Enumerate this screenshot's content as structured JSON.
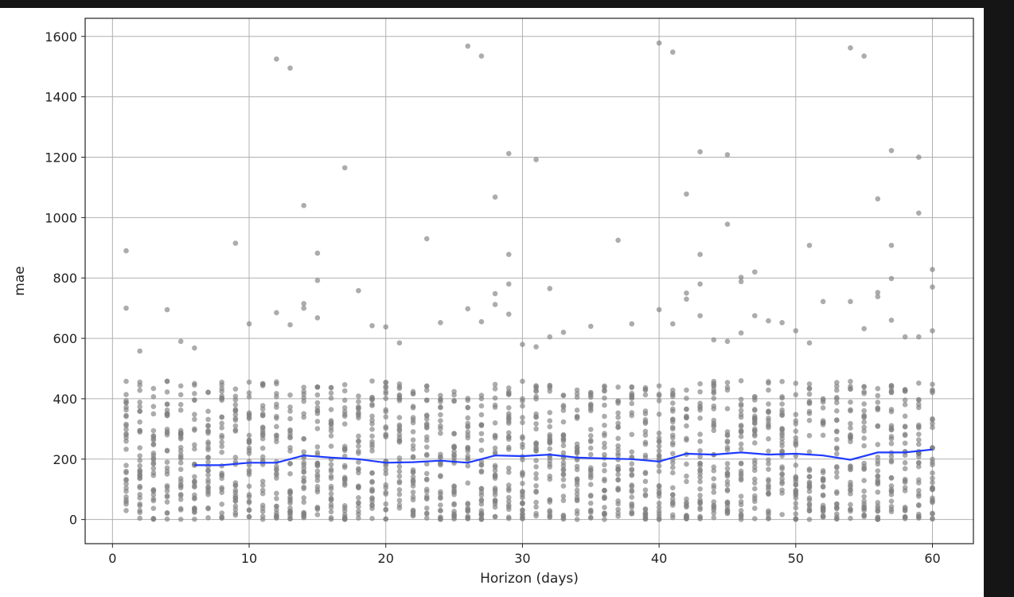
{
  "chart_data": {
    "type": "scatter",
    "xlabel": "Horizon (days)",
    "ylabel": "mae",
    "xlim": [
      -2,
      63
    ],
    "ylim": [
      -80,
      1660
    ],
    "grid": true,
    "xticks": [
      0,
      10,
      20,
      30,
      40,
      50,
      60
    ],
    "yticks": [
      0,
      200,
      400,
      600,
      800,
      1000,
      1200,
      1400,
      1600
    ],
    "xtick_labels": [
      "0",
      "10",
      "20",
      "30",
      "40",
      "50",
      "60"
    ],
    "ytick_labels": [
      "0",
      "200",
      "400",
      "600",
      "800",
      "1000",
      "1200",
      "1400",
      "1600"
    ],
    "colors": {
      "points": "#808080",
      "rolling_line": "#1f3bff",
      "grid": "#b0b0b0"
    },
    "outliers": [
      [
        1,
        890
      ],
      [
        1,
        700
      ],
      [
        2,
        558
      ],
      [
        2,
        455
      ],
      [
        4,
        695
      ],
      [
        5,
        590
      ],
      [
        6,
        568
      ],
      [
        9,
        915
      ],
      [
        10,
        648
      ],
      [
        12,
        1525
      ],
      [
        12,
        685
      ],
      [
        13,
        1495
      ],
      [
        13,
        645
      ],
      [
        14,
        1040
      ],
      [
        14,
        715
      ],
      [
        14,
        700
      ],
      [
        15,
        882
      ],
      [
        15,
        792
      ],
      [
        15,
        668
      ],
      [
        17,
        1165
      ],
      [
        18,
        758
      ],
      [
        19,
        642
      ],
      [
        20,
        638
      ],
      [
        21,
        585
      ],
      [
        23,
        930
      ],
      [
        24,
        652
      ],
      [
        26,
        1568
      ],
      [
        26,
        698
      ],
      [
        27,
        1535
      ],
      [
        27,
        655
      ],
      [
        28,
        1068
      ],
      [
        28,
        748
      ],
      [
        28,
        712
      ],
      [
        29,
        1212
      ],
      [
        29,
        878
      ],
      [
        29,
        780
      ],
      [
        29,
        680
      ],
      [
        30,
        580
      ],
      [
        31,
        1192
      ],
      [
        31,
        572
      ],
      [
        32,
        765
      ],
      [
        32,
        605
      ],
      [
        33,
        620
      ],
      [
        35,
        640
      ],
      [
        37,
        925
      ],
      [
        38,
        648
      ],
      [
        40,
        1578
      ],
      [
        40,
        695
      ],
      [
        41,
        1548
      ],
      [
        41,
        648
      ],
      [
        42,
        1078
      ],
      [
        42,
        750
      ],
      [
        42,
        730
      ],
      [
        43,
        1218
      ],
      [
        43,
        878
      ],
      [
        43,
        780
      ],
      [
        43,
        675
      ],
      [
        44,
        595
      ],
      [
        45,
        1208
      ],
      [
        45,
        978
      ],
      [
        45,
        590
      ],
      [
        46,
        802
      ],
      [
        46,
        788
      ],
      [
        46,
        618
      ],
      [
        47,
        820
      ],
      [
        47,
        675
      ],
      [
        48,
        658
      ],
      [
        49,
        652
      ],
      [
        50,
        625
      ],
      [
        51,
        908
      ],
      [
        51,
        585
      ],
      [
        52,
        722
      ],
      [
        54,
        1562
      ],
      [
        54,
        722
      ],
      [
        55,
        1535
      ],
      [
        55,
        632
      ],
      [
        56,
        1062
      ],
      [
        56,
        752
      ],
      [
        56,
        738
      ],
      [
        57,
        1222
      ],
      [
        57,
        908
      ],
      [
        57,
        798
      ],
      [
        57,
        660
      ],
      [
        58,
        605
      ],
      [
        59,
        1200
      ],
      [
        59,
        1015
      ],
      [
        59,
        605
      ],
      [
        60,
        828
      ],
      [
        60,
        770
      ],
      [
        60,
        625
      ]
    ],
    "dense_cluster": {
      "x_from": 1,
      "x_to": 60,
      "y_from": 0,
      "y_to": 460,
      "points_per_day": 30
    },
    "rolling_mean": {
      "x": [
        6,
        8,
        10,
        12,
        14,
        16,
        18,
        20,
        22,
        24,
        26,
        28,
        30,
        32,
        34,
        36,
        38,
        40,
        42,
        44,
        46,
        48,
        50,
        52,
        54,
        56,
        58,
        60
      ],
      "y": [
        180,
        180,
        188,
        188,
        212,
        205,
        200,
        188,
        190,
        195,
        188,
        212,
        210,
        215,
        205,
        202,
        200,
        192,
        218,
        215,
        222,
        215,
        218,
        212,
        198,
        222,
        222,
        232
      ]
    }
  }
}
